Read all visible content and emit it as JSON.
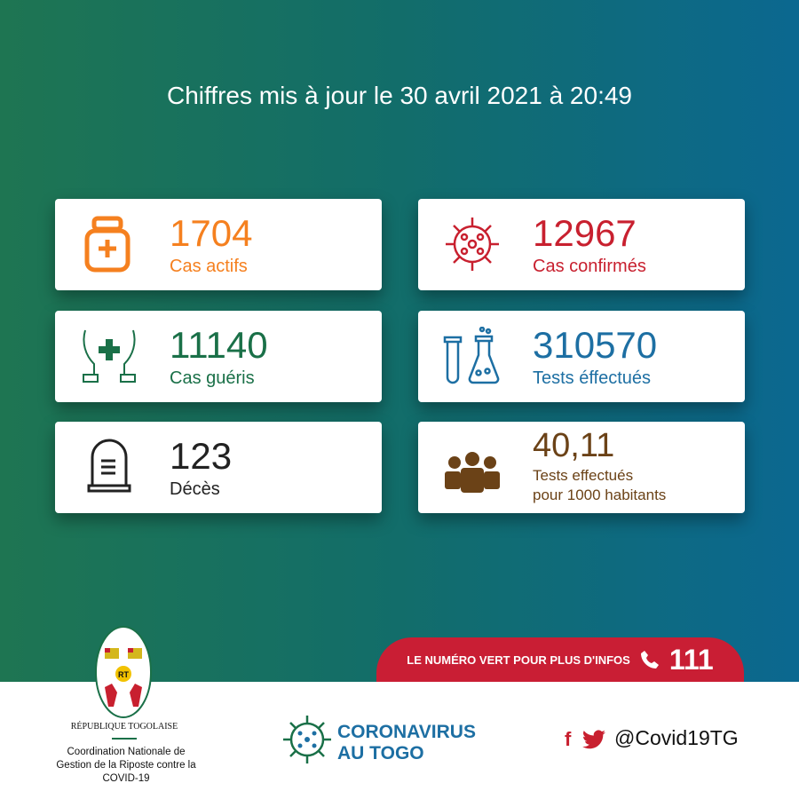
{
  "header": {
    "title": "Chiffres mis à jour le 30 avril 2021 à 20:49"
  },
  "stats": [
    {
      "value": "1704",
      "label": "Cas actifs",
      "color": "#f5801f",
      "icon": "medicine-bottle-icon"
    },
    {
      "value": "12967",
      "label": "Cas confirmés",
      "color": "#c8202f",
      "icon": "virus-icon"
    },
    {
      "value": "11140",
      "label": "Cas guéris",
      "color": "#1a7048",
      "icon": "hands-cross-icon"
    },
    {
      "value": "310570",
      "label": "Tests éffectués",
      "color": "#1d6fa3",
      "icon": "test-tubes-icon"
    },
    {
      "value": "123",
      "label": "Décès",
      "color": "#222222",
      "icon": "tombstone-icon"
    },
    {
      "value": "40,11",
      "label": "Tests effectués",
      "label2": "pour 1000 habitants",
      "color": "#6b4217",
      "icon": "people-icon"
    }
  ],
  "banner": {
    "text": "LE NUMÉRO VERT POUR PLUS D'INFOS",
    "number": "111"
  },
  "footer": {
    "republic": "RÉPUBLIQUE TOGOLAISE",
    "org_line1": "Coordination Nationale de",
    "org_line2": "Gestion de la Riposte contre la",
    "org_line3": "COVID-19",
    "emblem_text": "RT",
    "campaign_line1": "CORONAVIRUS",
    "campaign_line2": "AU TOGO",
    "social_handle": "@Covid19TG"
  }
}
